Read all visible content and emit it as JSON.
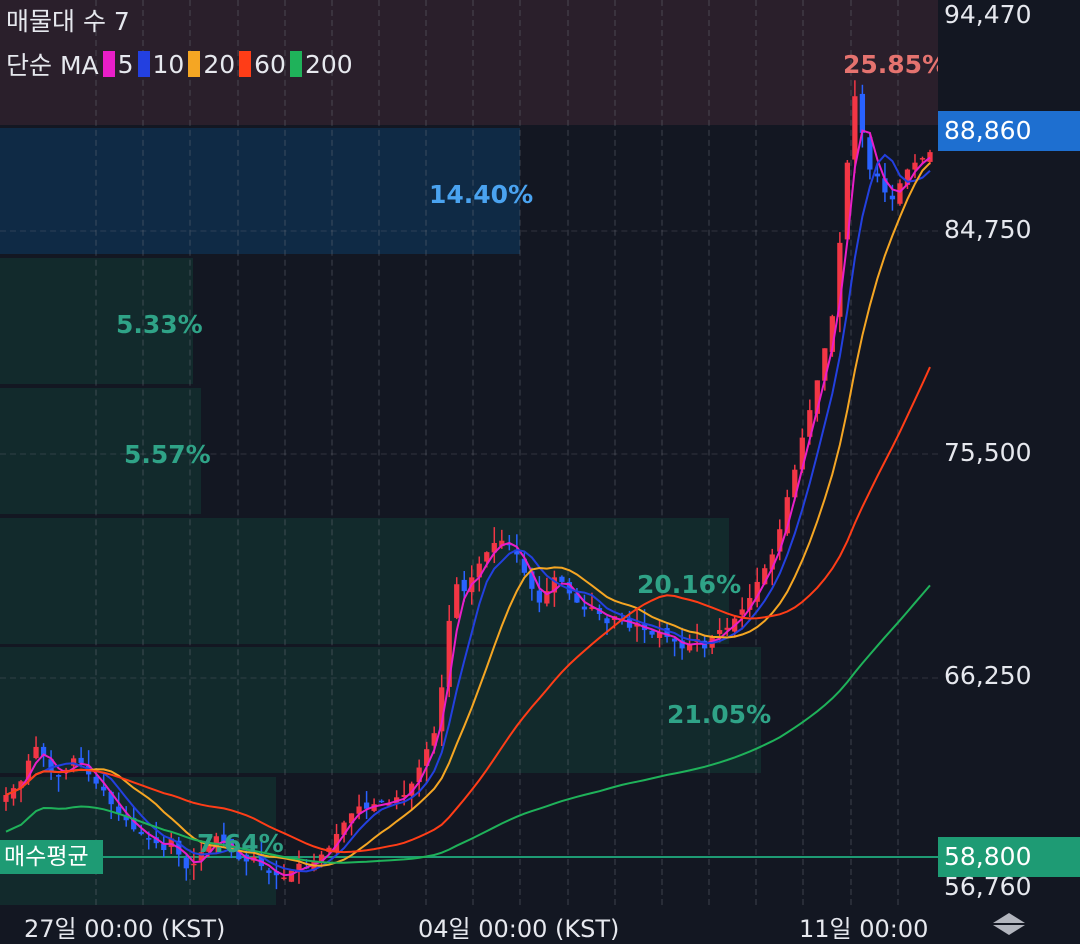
{
  "legend": {
    "title": "매물대 수 7",
    "ma_prefix": "단순 MA",
    "ma_items": [
      {
        "period": "5",
        "color": "#e91ec8"
      },
      {
        "period": "10",
        "color": "#2340e0"
      },
      {
        "period": "20",
        "color": "#f5a623"
      },
      {
        "period": "60",
        "color": "#ff3d17"
      },
      {
        "period": "200",
        "color": "#1fb25a"
      }
    ]
  },
  "volume_profile": [
    {
      "label": "25.85%",
      "color": "#e5736f",
      "fill": "#2a1f2b"
    },
    {
      "label": "14.40%",
      "color": "#4aa3f0",
      "fill": "#0f2a45"
    },
    {
      "label": "5.33%",
      "color": "#2fa387",
      "fill": "#122a2c"
    },
    {
      "label": "5.57%",
      "color": "#2fa387",
      "fill": "#122a2c"
    },
    {
      "label": "20.16%",
      "color": "#2fa387",
      "fill": "#122a2c"
    },
    {
      "label": "21.05%",
      "color": "#2fa387",
      "fill": "#122a2c"
    },
    {
      "label": "7.64%",
      "color": "#2fa387",
      "fill": "#122a2c"
    }
  ],
  "price_axis": {
    "ticks": [
      "94,470",
      "84,750",
      "75,500",
      "66,250",
      "56,760"
    ],
    "current_price": "88,860",
    "current_price_color": "#1e6fd0",
    "avg_price": "58,800",
    "avg_price_color": "#1e9b74"
  },
  "avg_price_label": "매수평균",
  "time_axis": {
    "ticks": [
      "27일 00:00 (KST)",
      "04일 00:00 (KST)",
      "11일 00:00"
    ]
  },
  "icons": {
    "scroll": "up-down-arrows-icon"
  },
  "chart_data": {
    "type": "candlestick",
    "x_start": "27일",
    "x_end": "11일 이후",
    "y_range": [
      56000,
      95500
    ],
    "grid": true,
    "closes": [
      60800,
      61100,
      61400,
      62300,
      62900,
      62500,
      61800,
      61600,
      61900,
      62400,
      62200,
      61700,
      61300,
      61000,
      60400,
      60000,
      59700,
      59300,
      59100,
      58900,
      58700,
      58400,
      58900,
      58200,
      57600,
      57800,
      58300,
      58600,
      59000,
      58700,
      58300,
      58000,
      57900,
      58100,
      57700,
      57400,
      57300,
      57200,
      57500,
      57800,
      57600,
      57900,
      58200,
      58500,
      59100,
      59600,
      60000,
      60300,
      60200,
      60400,
      60500,
      60400,
      60700,
      60800,
      61300,
      62000,
      62800,
      63500,
      65500,
      68400,
      70000,
      69700,
      70300,
      70900,
      71400,
      71800,
      71900,
      71700,
      71300,
      70500,
      69800,
      69200,
      69700,
      70300,
      70100,
      69600,
      69200,
      68900,
      69000,
      68700,
      68300,
      68600,
      68400,
      68100,
      68300,
      68000,
      67800,
      67900,
      67700,
      67500,
      67200,
      67400,
      67600,
      67200,
      67700,
      68000,
      68100,
      68500,
      68900,
      69400,
      70100,
      70700,
      71300,
      72400,
      73800,
      75000,
      76400,
      77600,
      78900,
      80300,
      81700,
      84900,
      88400,
      91300,
      89700,
      88100,
      87800,
      87100,
      86800,
      87500,
      88100,
      88400,
      88600,
      88860
    ],
    "ma_series": [
      {
        "name": "5",
        "color": "#e91ec8"
      },
      {
        "name": "10",
        "color": "#2340e0"
      },
      {
        "name": "20",
        "color": "#f5a623"
      },
      {
        "name": "60",
        "color": "#ff3d17"
      },
      {
        "name": "200",
        "color": "#1fb25a"
      }
    ]
  }
}
